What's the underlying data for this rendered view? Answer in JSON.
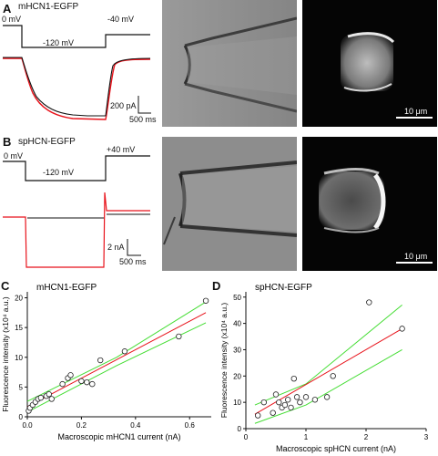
{
  "panels": {
    "A": {
      "letter": "A",
      "title": "mHCN1-EGFP",
      "protocol_labels": {
        "hold": "0 mV",
        "step": "-120 mV",
        "tail": "-40 mV"
      },
      "scale_current": "200 pA",
      "scale_time": "500 ms",
      "image_scale": "10 μm"
    },
    "B": {
      "letter": "B",
      "title": "spHCN-EGFP",
      "protocol_labels": {
        "hold": "0 mV",
        "step": "-120 mV",
        "tail": "+40 mV"
      },
      "scale_current": "2 nA",
      "scale_time": "500 ms",
      "image_scale": "10 μm"
    }
  },
  "colors": {
    "trace_black": "#111111",
    "trace_red": "#e8121a",
    "fit_red": "#e8121a",
    "ci_green": "#44dd33",
    "microscope_gray": "#8c8c8c",
    "fluor_bg": "#050505"
  },
  "chart_data": [
    {
      "panel": "C",
      "type": "scatter",
      "title": "mHCN1-EGFP",
      "xlabel": "Macroscopic mHCN1 current (nA)",
      "ylabel": "Fluorescence intensity (x10⁴ a.u.)",
      "xlim": [
        0,
        0.68
      ],
      "ylim": [
        0,
        21
      ],
      "xticks": [
        0.0,
        0.2,
        0.4,
        0.6
      ],
      "xtick_labels": [
        "0.0",
        "0.2",
        "0.4",
        "0.6"
      ],
      "yticks": [
        0,
        5,
        10,
        15,
        20
      ],
      "ytick_labels": [
        "0",
        "5",
        "10",
        "15",
        "20"
      ],
      "x": [
        0.005,
        0.01,
        0.02,
        0.03,
        0.04,
        0.05,
        0.07,
        0.08,
        0.09,
        0.13,
        0.15,
        0.16,
        0.2,
        0.22,
        0.24,
        0.27,
        0.36,
        0.56,
        0.66
      ],
      "y": [
        1.0,
        1.5,
        2.0,
        2.5,
        3.0,
        3.2,
        3.5,
        3.8,
        3.0,
        5.5,
        6.5,
        7.0,
        6.0,
        5.8,
        5.5,
        9.5,
        11.0,
        13.5,
        19.5
      ],
      "fit_line": {
        "x": [
          0,
          0.66
        ],
        "y": [
          1.7,
          17.5
        ]
      },
      "ci_upper": {
        "x": [
          0,
          0.33,
          0.66
        ],
        "y": [
          2.6,
          10.0,
          19.3
        ]
      },
      "ci_lower": {
        "x": [
          0,
          0.33,
          0.66
        ],
        "y": [
          0.8,
          8.6,
          15.8
        ]
      },
      "grid": false
    },
    {
      "panel": "D",
      "type": "scatter",
      "title": "spHCN-EGFP",
      "xlabel": "Macroscopic spHCN current (nA)",
      "ylabel": "Fluorescence intensity (x10⁴ a.u.)",
      "xlim": [
        0,
        3
      ],
      "ylim": [
        0,
        52
      ],
      "xticks": [
        0,
        1,
        2,
        3
      ],
      "xtick_labels": [
        "0",
        "1",
        "2",
        "3"
      ],
      "yticks": [
        0,
        10,
        20,
        30,
        40,
        50
      ],
      "ytick_labels": [
        "0",
        "10",
        "20",
        "30",
        "40",
        "50"
      ],
      "x": [
        0.2,
        0.3,
        0.45,
        0.5,
        0.55,
        0.6,
        0.65,
        0.7,
        0.75,
        0.8,
        0.85,
        0.9,
        1.0,
        1.15,
        1.35,
        1.45,
        2.05,
        2.6
      ],
      "y": [
        5,
        10,
        6,
        13,
        10,
        8,
        9,
        11,
        8,
        19,
        12,
        10,
        12,
        11,
        12,
        20,
        48,
        38
      ],
      "fit_line": {
        "x": [
          0.15,
          2.6
        ],
        "y": [
          5.5,
          38
        ]
      },
      "ci_upper": {
        "x": [
          0.15,
          1.0,
          2.6
        ],
        "y": [
          9,
          17,
          47
        ]
      },
      "ci_lower": {
        "x": [
          0.15,
          1.0,
          2.6
        ],
        "y": [
          2,
          9,
          30
        ]
      },
      "grid": false
    }
  ]
}
